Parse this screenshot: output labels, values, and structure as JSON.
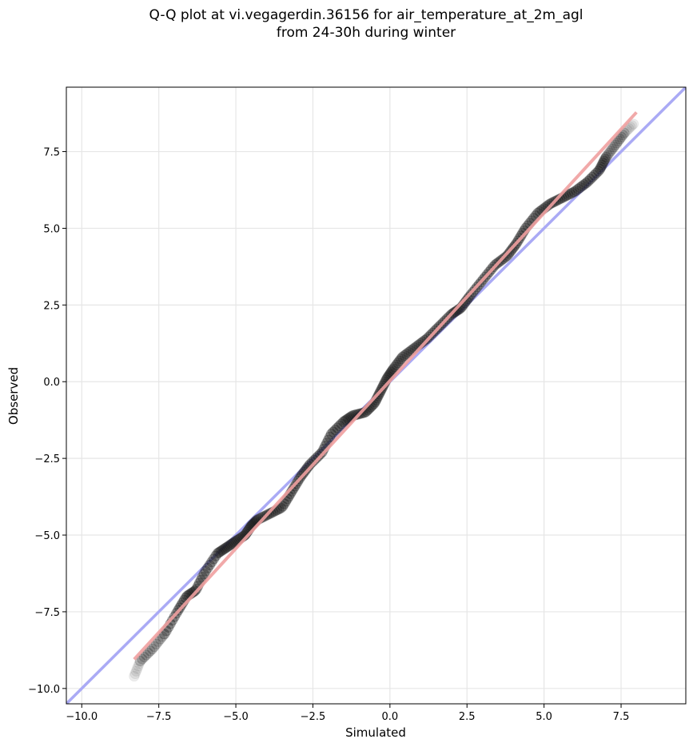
{
  "chart_data": {
    "type": "scatter",
    "title_lines": [
      "Q-Q plot at vi.vegagerdin.36156 for air_temperature_at_2m_agl",
      "from 24-30h during winter"
    ],
    "xlabel": "Simulated",
    "ylabel": "Observed",
    "xlim": [
      -10.5,
      9.6
    ],
    "ylim": [
      -10.5,
      9.6
    ],
    "xticks": [
      -10.0,
      -7.5,
      -5.0,
      -2.5,
      0.0,
      2.5,
      5.0,
      7.5
    ],
    "yticks": [
      -10.0,
      -7.5,
      -5.0,
      -2.5,
      0.0,
      2.5,
      5.0,
      7.5
    ],
    "xtick_labels": [
      "−10.0",
      "−7.5",
      "−5.0",
      "−2.5",
      "0.0",
      "2.5",
      "5.0",
      "7.5"
    ],
    "ytick_labels": [
      "−10.0",
      "−7.5",
      "−5.0",
      "−2.5",
      "0.0",
      "2.5",
      "5.0",
      "7.5"
    ],
    "grid": true,
    "reference_line": {
      "slope": 1,
      "intercept": 0,
      "color": "#aaaaf5"
    },
    "fit_line": {
      "x": [
        -8.3,
        8.0
      ],
      "y": [
        -9.05,
        8.78
      ],
      "color": "#f0a0a0"
    },
    "marker_color": "#1a1a1a",
    "quantile_curve": {
      "x": [
        -8.3,
        -8.1,
        -7.7,
        -7.3,
        -6.9,
        -6.6,
        -6.3,
        -6.0,
        -5.6,
        -5.3,
        -5.0,
        -4.7,
        -4.5,
        -4.3,
        -3.9,
        -3.5,
        -3.2,
        -2.9,
        -2.6,
        -2.2,
        -1.9,
        -1.5,
        -1.2,
        -0.8,
        -0.5,
        -0.3,
        -0.1,
        0.1,
        0.4,
        0.8,
        1.2,
        1.6,
        2.0,
        2.3,
        2.6,
        3.0,
        3.4,
        3.8,
        4.1,
        4.4,
        4.8,
        5.2,
        5.6,
        6.0,
        6.4,
        6.8,
        7.0,
        7.3,
        7.6,
        7.9
      ],
      "y": [
        -9.6,
        -9.1,
        -8.7,
        -8.2,
        -7.5,
        -7.0,
        -6.8,
        -6.2,
        -5.6,
        -5.4,
        -5.2,
        -5.0,
        -4.7,
        -4.5,
        -4.3,
        -4.1,
        -3.6,
        -3.1,
        -2.7,
        -2.3,
        -1.7,
        -1.3,
        -1.1,
        -1.0,
        -0.7,
        -0.3,
        0.1,
        0.4,
        0.8,
        1.1,
        1.4,
        1.8,
        2.2,
        2.4,
        2.8,
        3.3,
        3.8,
        4.1,
        4.5,
        5.0,
        5.5,
        5.8,
        6.0,
        6.2,
        6.5,
        6.9,
        7.3,
        7.7,
        8.1,
        8.4
      ]
    },
    "n_points": 300
  }
}
